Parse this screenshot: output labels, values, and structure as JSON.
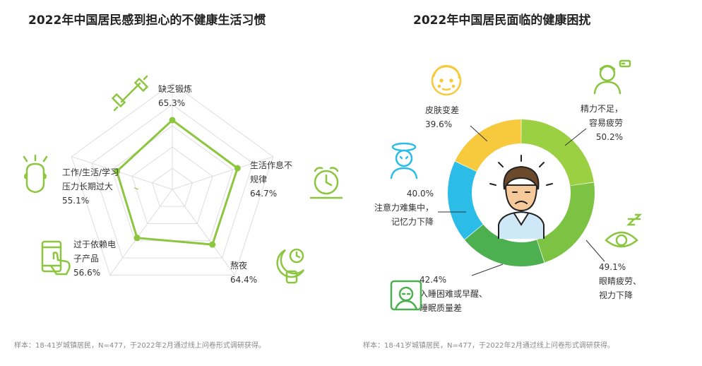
{
  "left_chart": {
    "title": "2022年中国居民感到担心的不健康生活习惯",
    "note": "样本：18-41岁城镇居民，N=477，于2022年2月通过线上问卷形式调研获得。"
  },
  "right_chart": {
    "title": "2022年中国居民面临的健康困扰",
    "note": "样本：18-41岁城镇居民，N=477，于2022年2月通过线上问卷形式调研获得。"
  },
  "colors": {
    "green": "#8cc63f",
    "grid": "#dddddd",
    "yellow": "#f7c93c",
    "blue": "#2bbde8",
    "darkgreen": "#4caf50",
    "lime": "#9ad042"
  },
  "icons": [
    "dumbbell-icon",
    "alarm-clock-icon",
    "night-icon",
    "phone-hand-icon",
    "stressed-head-icon",
    "face-skin-icon",
    "tired-person-icon",
    "eye-icon",
    "dizzy-person-icon",
    "sleep-person-icon",
    "worried-man-icon"
  ],
  "chart_data": [
    {
      "type": "radar",
      "title": "2022年中国居民感到担心的不健康生活习惯",
      "categories": [
        "缺乏锻炼",
        "生活作息不规律",
        "熬夜",
        "过于依赖电子产品",
        "工作/生活/学习压力长期过大"
      ],
      "display_labels": [
        [
          "缺乏锻炼"
        ],
        [
          "生活作息不",
          "规律"
        ],
        [
          "熬夜"
        ],
        [
          "过于依赖电",
          "子产品"
        ],
        [
          "工作/生活/学习",
          "压力长期过大"
        ]
      ],
      "value_labels": [
        "65.3%",
        "64.7%",
        "64.4%",
        "56.6%",
        "55.1%"
      ],
      "values": [
        65.3,
        64.7,
        64.4,
        56.6,
        55.1
      ]
    },
    {
      "type": "donut",
      "title": "2022年中国居民面临的健康困扰",
      "categories": [
        "精力不足，容易疲劳",
        "眼睛疲劳、视力下降",
        "入睡困难或早醒、睡眠质量差",
        "注意力难集中，记忆力下降",
        "皮肤变差"
      ],
      "display_labels": [
        [
          "精力不足，",
          "容易疲劳"
        ],
        [
          "眼睛疲劳、",
          "视力下降"
        ],
        [
          "入睡困难或早醒、",
          "睡眠质量差"
        ],
        [
          "注意力难集中，",
          "记忆力下降"
        ],
        [
          "皮肤变差"
        ]
      ],
      "value_labels": [
        "50.2%",
        "49.1%",
        "42.4%",
        "40.0%",
        "39.6%"
      ],
      "values": [
        50.2,
        49.1,
        42.4,
        40.0,
        39.6
      ],
      "colors": [
        "#9ad042",
        "#7cc243",
        "#4caf50",
        "#2bbde8",
        "#f7c93c"
      ]
    }
  ]
}
